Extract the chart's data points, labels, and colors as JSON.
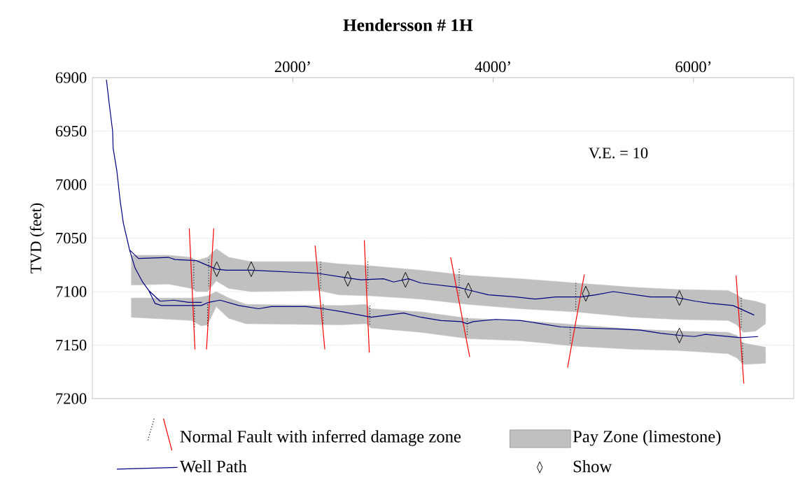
{
  "chart_data": {
    "type": "line",
    "title": "Hendersson # 1H",
    "ylabel": "TVD (feet)",
    "annotations": [
      "V.E. = 10"
    ],
    "xlim": [
      0,
      7000
    ],
    "xticks": [
      {
        "value": 2000,
        "label": "2000’"
      },
      {
        "value": 4000,
        "label": "4000’"
      },
      {
        "value": 6000,
        "label": "6000’"
      }
    ],
    "ylim": [
      7200,
      6900
    ],
    "yticks": [
      6900,
      6950,
      7000,
      7050,
      7100,
      7150,
      7200
    ],
    "grid": "y",
    "legend": "bottom",
    "series": [
      {
        "name": "Normal Fault with inferred damage zone",
        "color": "#ff0000",
        "x": [
          967,
          1024,
          null,
          1211,
          1139,
          null,
          2223,
          2320,
          null,
          2714,
          2764,
          null,
          3576,
          3766,
          null,
          4910,
          4743,
          null,
          6425,
          6502
        ],
        "values": [
          7041,
          7154,
          null,
          7041,
          7154,
          null,
          7057,
          7154,
          null,
          7052,
          7157,
          null,
          7068,
          7161,
          null,
          7084,
          7171,
          null,
          7085,
          7186
        ]
      },
      {
        "name": "Pay Zone (limestone)",
        "type": "area",
        "color": "#c0c0c0",
        "x": [
          389,
          762,
          987,
          1037,
          1149,
          1236,
          1361,
          1585,
          2258,
          2457,
          2781,
          3280,
          3753,
          4277,
          4825,
          5398,
          5847,
          6345,
          6432,
          6495,
          6619,
          6719
        ],
        "values": [
          null,
          null,
          null,
          null,
          null,
          null,
          null,
          null,
          null,
          null,
          null,
          null,
          null,
          null,
          null,
          null,
          null,
          null,
          null,
          null,
          null,
          null
        ],
        "lower": [
          7066,
          7066,
          7068,
          7071,
          7068,
          7060,
          7068,
          7072,
          7072,
          7074,
          7076,
          7080,
          7085,
          7088,
          7092,
          7096,
          7098,
          7099,
          7103,
          7107,
          7109,
          7112
        ],
        "upper": [
          7094,
          7093,
          7097,
          7100,
          7100,
          7090,
          7097,
          7100,
          7099,
          7103,
          7104,
          7107,
          7112,
          7116,
          7119,
          7124,
          7126,
          7127,
          7131,
          7138,
          7137,
          7130
        ]
      },
      {
        "name": "Well  Path",
        "color": "#000080",
        "x": [
          140,
          165,
          202,
          207,
          244,
          277,
          309,
          344,
          371,
          426,
          501,
          563,
          625,
          688,
          987,
          1087,
          1161,
          1274,
          1461,
          1660,
          1784,
          2133,
          2308,
          2507,
          2782,
          3105,
          3280,
          3479,
          3678,
          3741,
          3803,
          4027,
          4277,
          4476,
          4676,
          4875,
          5274,
          5473,
          5673,
          5872,
          6009,
          6121,
          6470,
          6645,
          null,
          371,
          460,
          758,
          825,
          1037,
          1236,
          1336,
          1585,
          2258,
          2532,
          2682,
          2906,
          3006,
          3155,
          3280,
          3654,
          3778,
          3953,
          4227,
          4426,
          4626,
          4875,
          5024,
          5199,
          5572,
          5796,
          6021,
          6170,
          6394,
          6606,
          null,
          563,
          676,
          812,
          962,
          1092
        ],
        "values": [
          6902,
          6922,
          6950,
          6966,
          6987,
          7015,
          7036,
          7050,
          7061,
          7078,
          7091,
          7099,
          7111,
          7113,
          7113,
          7113,
          7110,
          7108,
          7113,
          7116,
          7114,
          7114,
          7116,
          7119,
          7124,
          7120,
          7124,
          7127,
          7128,
          7130,
          7128,
          7126,
          7127,
          7130,
          7133,
          7134,
          7135,
          7136,
          7139,
          7141,
          7142,
          7140,
          7143,
          7142,
          null,
          7061,
          7069,
          7068,
          7070,
          7071,
          7079,
          7080,
          7080,
          7083,
          7087,
          7089,
          7088,
          7091,
          7088,
          7092,
          7096,
          7099,
          7103,
          7105,
          7107,
          7105,
          7105,
          7103,
          7100,
          7105,
          7105,
          7109,
          7111,
          7113,
          7122,
          null,
          7099,
          7109,
          7108,
          7110,
          7110
        ]
      },
      {
        "name": "Show",
        "type": "scatter",
        "marker": "diamond",
        "color": "#000000",
        "x": [
          1241,
          1585,
          2549,
          3125,
          3753,
          4925,
          5859,
          5859
        ],
        "values": [
          7079,
          7079,
          7088,
          7089,
          7099,
          7102,
          7106,
          7141
        ]
      },
      {
        "type": "area",
        "color": "#c0c0c0",
        "x": [
          389,
          987,
          1087,
          1149,
          1236,
          1361,
          1535,
          2482,
          2731,
          2781,
          3280,
          3753,
          4277,
          4825,
          5398,
          5847,
          6345,
          6432,
          6495,
          6719
        ],
        "values": [
          null,
          null,
          null,
          null,
          null,
          null,
          null,
          null,
          null,
          null,
          null,
          null,
          null,
          null,
          null,
          null,
          null,
          null,
          null,
          null
        ],
        "lower": [
          7106,
          7106,
          7105,
          7104,
          7100,
          7106,
          7112,
          7113,
          7112,
          7116,
          7119,
          7125,
          7127,
          7131,
          7135,
          7137,
          7138,
          7141,
          7148,
          7152
        ],
        "upper": [
          7124,
          7127,
          7132,
          7131,
          7114,
          7125,
          7130,
          7131,
          7130,
          7134,
          7138,
          7144,
          7146,
          7151,
          7154,
          7155,
          7158,
          7162,
          7168,
          7167
        ]
      },
      {
        "line_style": "dotted",
        "color": "#000000",
        "x": [
          1012,
          1012,
          null,
          1161,
          1161,
          null,
          1019,
          1019,
          null,
          1149,
          1149,
          null,
          2278,
          2278,
          null,
          2303,
          2303,
          null,
          2749,
          2749,
          null,
          2769,
          2769,
          null,
          3661,
          3661,
          null,
          3741,
          3741,
          null,
          4825,
          4825,
          null,
          4770,
          4770,
          null,
          6477,
          6477,
          null,
          6490,
          6490
        ],
        "values": [
          7072,
          7098,
          null,
          7070,
          7097,
          null,
          7113,
          7134,
          null,
          7112,
          7133,
          null,
          7072,
          7098,
          null,
          7112,
          7131,
          null,
          7072,
          7099,
          null,
          7113,
          7132,
          null,
          7079,
          7104,
          null,
          7125,
          7141,
          null,
          7092,
          7118,
          null,
          7133,
          7149,
          null,
          7106,
          7134,
          null,
          7148,
          7167
        ]
      }
    ]
  }
}
